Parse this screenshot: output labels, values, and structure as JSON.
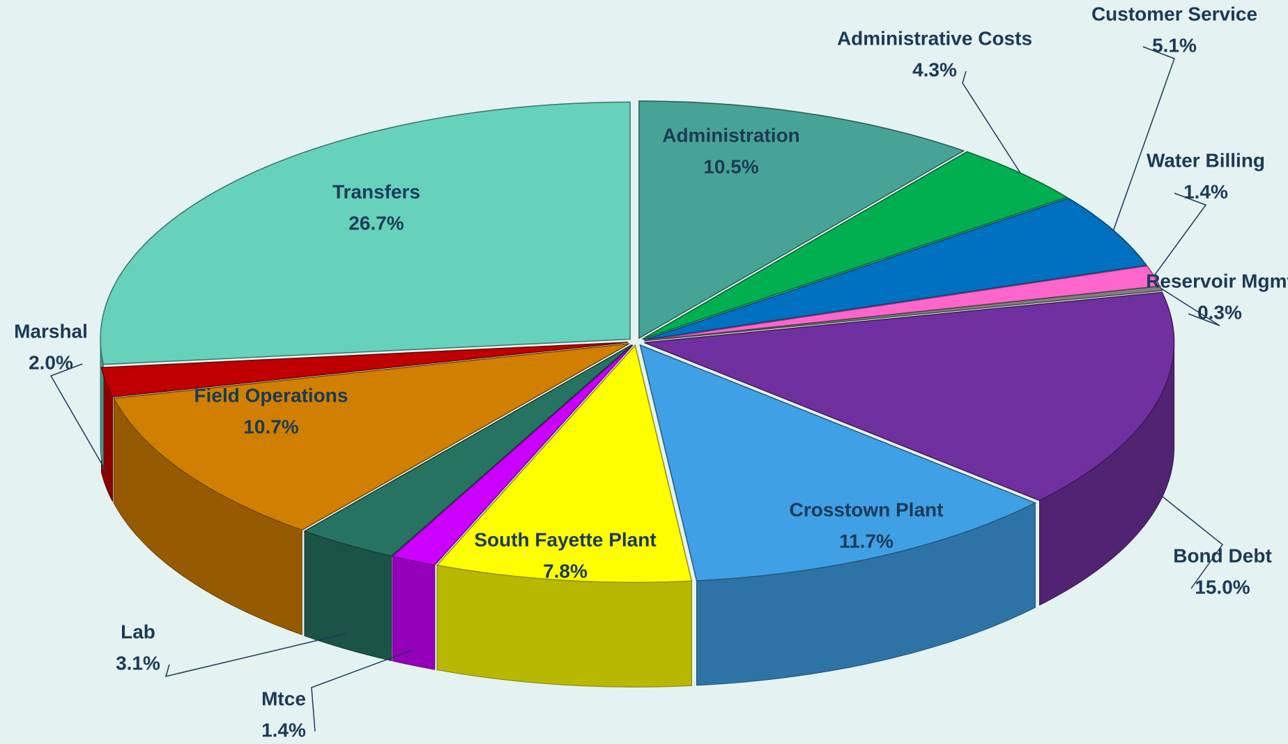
{
  "chart_data": {
    "type": "pie",
    "categories": [
      "Administration",
      "Administrative Costs",
      "Customer Service",
      "Water Billing",
      "Reservoir Mgmt",
      "Bond Debt",
      "Crosstown Plant",
      "South Fayette Plant",
      "Mtce",
      "Lab",
      "Field Operations",
      "Marshal",
      "Transfers"
    ],
    "values": [
      10.5,
      4.3,
      5.1,
      1.4,
      0.3,
      15.0,
      11.7,
      7.8,
      1.4,
      3.1,
      10.7,
      2.0,
      26.7
    ],
    "value_labels": [
      "10.5%",
      "4.3%",
      "5.1%",
      "1.4%",
      "0.3%",
      "15.0%",
      "11.7%",
      "7.8%",
      "1.4%",
      "3.1%",
      "10.7%",
      "2.0%",
      "26.7%"
    ],
    "colors": [
      "#48a397",
      "#00b050",
      "#0070c0",
      "#ff66cc",
      "#808080",
      "#7030a0",
      "#3fa0e6",
      "#ffff00",
      "#cc00ff",
      "#267362",
      "#d17f00",
      "#c00000",
      "#66d2bc"
    ]
  }
}
